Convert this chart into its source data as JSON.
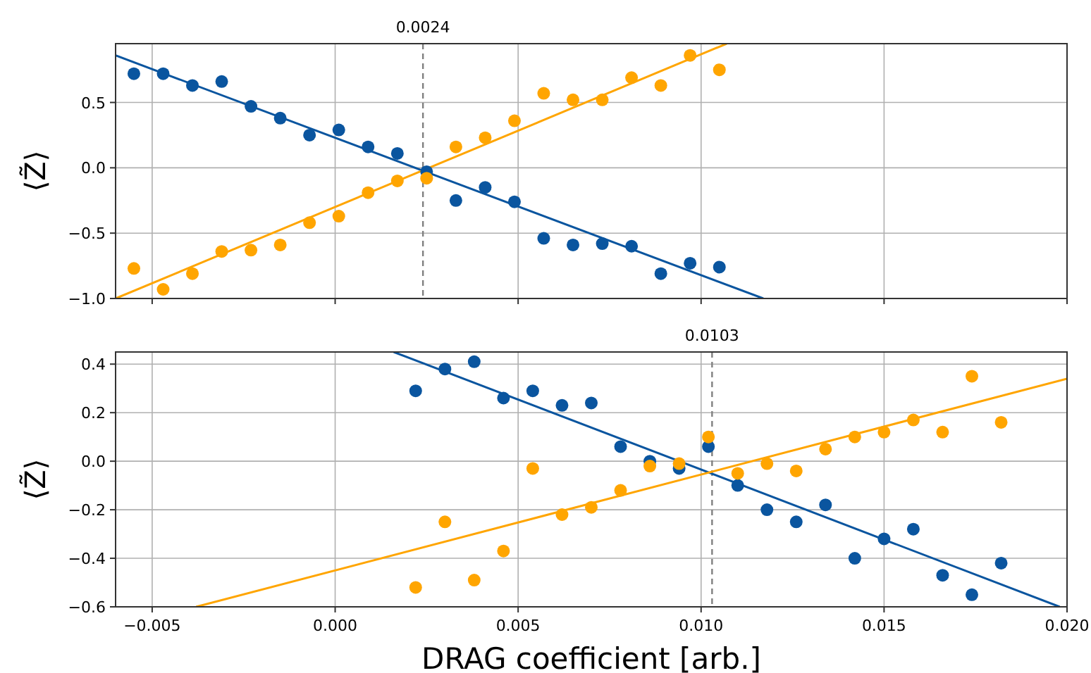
{
  "chart_data": [
    {
      "type": "scatter",
      "ylabel": "⟨Z̃⟩",
      "xlim": [
        -0.006,
        0.02
      ],
      "ylim": [
        -1.0,
        0.95
      ],
      "xticks": [
        {
          "value": -0.005,
          "label": null
        },
        {
          "value": 0,
          "label": null
        },
        {
          "value": 0.005,
          "label": null
        },
        {
          "value": 0.01,
          "label": null
        },
        {
          "value": 0.015,
          "label": null
        },
        {
          "value": 0.02,
          "label": null
        }
      ],
      "yticks": [
        {
          "value": -1.0,
          "label": "−1.0"
        },
        {
          "value": -0.5,
          "label": "−0.5"
        },
        {
          "value": 0,
          "label": "0.0"
        },
        {
          "value": 0.5,
          "label": "0.5"
        }
      ],
      "tick_labels": "y",
      "grid": true,
      "x": [
        -0.0055,
        -0.0047,
        -0.0039,
        -0.0031,
        -0.0023,
        -0.0015,
        -0.0007,
        0.0001,
        0.0009,
        0.0017,
        0.0025,
        0.0033,
        0.0041,
        0.0049,
        0.0057,
        0.0065,
        0.0073,
        0.0081,
        0.0089,
        0.0097,
        0.0105
      ],
      "series": [
        {
          "marker": "circle",
          "color": "#0a559f",
          "values": [
            0.72,
            0.72,
            0.63,
            0.66,
            0.47,
            0.38,
            0.25,
            0.29,
            0.16,
            0.11,
            -0.03,
            -0.25,
            -0.15,
            -0.26,
            -0.54,
            -0.59,
            -0.58,
            -0.6,
            -0.81,
            -0.73,
            -0.76
          ]
        },
        {
          "marker": "circle",
          "color": "#ffa500",
          "values": [
            -0.77,
            -0.93,
            -0.81,
            -0.64,
            -0.63,
            -0.59,
            -0.42,
            -0.37,
            -0.19,
            -0.1,
            -0.08,
            0.16,
            0.23,
            0.36,
            0.57,
            0.52,
            0.52,
            0.69,
            0.63,
            0.86,
            0.75
          ]
        },
        {
          "type": "line",
          "marker": "none",
          "color": "#0a559f",
          "x": [
            -0.006,
            0.0117
          ],
          "values": [
            0.86,
            -1.0
          ]
        },
        {
          "type": "line",
          "marker": "none",
          "color": "#ffa500",
          "x": [
            -0.006,
            0.0107
          ],
          "values": [
            -1.0,
            0.95
          ]
        }
      ],
      "ref_lines": [
        {
          "axis": "x",
          "value": 0.0024,
          "label": "0.0024",
          "color": "#808080",
          "line_style": "dashed"
        }
      ]
    },
    {
      "type": "scatter",
      "ylabel": "⟨Z̃⟩",
      "xlabel": "DRAG coefficient [arb.]",
      "xlim": [
        -0.006,
        0.02
      ],
      "ylim": [
        -0.6,
        0.45
      ],
      "xticks": [
        {
          "value": -0.005,
          "label": "−0.005"
        },
        {
          "value": 0,
          "label": "0.000"
        },
        {
          "value": 0.005,
          "label": "0.005"
        },
        {
          "value": 0.01,
          "label": "0.010"
        },
        {
          "value": 0.015,
          "label": "0.015"
        },
        {
          "value": 0.02,
          "label": "0.020"
        }
      ],
      "yticks": [
        {
          "value": -0.6,
          "label": "−0.6"
        },
        {
          "value": -0.4,
          "label": "−0.4"
        },
        {
          "value": -0.2,
          "label": "−0.2"
        },
        {
          "value": 0,
          "label": "0.0"
        },
        {
          "value": 0.2,
          "label": "0.2"
        },
        {
          "value": 0.4,
          "label": "0.4"
        }
      ],
      "grid": true,
      "x": [
        0.0022,
        0.003,
        0.0038,
        0.0046,
        0.0054,
        0.0062,
        0.007,
        0.0078,
        0.0086,
        0.0094,
        0.0102,
        0.011,
        0.0118,
        0.0126,
        0.0134,
        0.0142,
        0.015,
        0.0158,
        0.0166,
        0.0174,
        0.0182
      ],
      "series": [
        {
          "marker": "circle",
          "color": "#0a559f",
          "values": [
            0.29,
            0.38,
            0.41,
            0.26,
            0.29,
            0.23,
            0.24,
            0.06,
            0.0,
            -0.03,
            0.06,
            -0.1,
            -0.2,
            -0.25,
            -0.18,
            -0.4,
            -0.32,
            -0.28,
            -0.47,
            -0.55,
            -0.42
          ]
        },
        {
          "marker": "circle",
          "color": "#ffa500",
          "values": [
            -0.52,
            -0.25,
            -0.49,
            -0.37,
            -0.03,
            -0.22,
            -0.19,
            -0.12,
            -0.02,
            -0.01,
            0.1,
            -0.05,
            -0.01,
            -0.04,
            0.05,
            0.1,
            0.12,
            0.17,
            0.12,
            0.35,
            0.16
          ]
        },
        {
          "type": "line",
          "marker": "none",
          "color": "#0a559f",
          "x": [
            0.0016,
            0.0198
          ],
          "values": [
            0.45,
            -0.6
          ]
        },
        {
          "type": "line",
          "marker": "none",
          "color": "#ffa500",
          "x": [
            -0.0038,
            0.02
          ],
          "values": [
            -0.6,
            0.34
          ]
        }
      ],
      "ref_lines": [
        {
          "axis": "x",
          "value": 0.0103,
          "label": "0.0103",
          "color": "#808080",
          "line_style": "dashed"
        }
      ]
    }
  ]
}
